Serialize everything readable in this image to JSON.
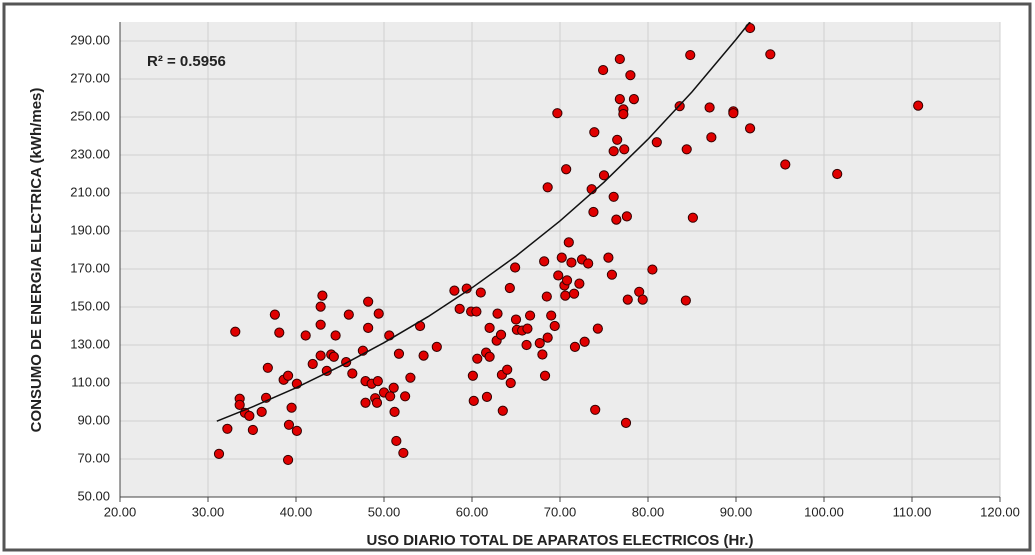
{
  "chart_data": {
    "type": "scatter",
    "annotation": "R² = 0.5956",
    "x_label": "USO DIARIO  TOTAL DE APARATOS  ELECTRICOS (Hr.)",
    "y_label": "CONSUMO DE ENERGIA ELECTRICA (kWh/mes)",
    "color": "#e00000",
    "grid": true,
    "xlim": [
      20,
      120
    ],
    "ylim": [
      50,
      300
    ],
    "xticks": [
      {
        "value": 20,
        "label": "20.00"
      },
      {
        "value": 30,
        "label": "30.00"
      },
      {
        "value": 40,
        "label": "40.00"
      },
      {
        "value": 50,
        "label": "50.00"
      },
      {
        "value": 60,
        "label": "60.00"
      },
      {
        "value": 70,
        "label": "70.00"
      },
      {
        "value": 80,
        "label": "80.00"
      },
      {
        "value": 90,
        "label": "90.00"
      },
      {
        "value": 100,
        "label": "100.00"
      },
      {
        "value": 110,
        "label": "110.00"
      },
      {
        "value": 120,
        "label": "120.00"
      }
    ],
    "yticks": [
      {
        "value": 50,
        "label": "50.00"
      },
      {
        "value": 70,
        "label": "70.00"
      },
      {
        "value": 90,
        "label": "90.00"
      },
      {
        "value": 110,
        "label": "110.00"
      },
      {
        "value": 130,
        "label": "130.00"
      },
      {
        "value": 150,
        "label": "150.00"
      },
      {
        "value": 170,
        "label": "170.00"
      },
      {
        "value": 190,
        "label": "190.00"
      },
      {
        "value": 210,
        "label": "210.00"
      },
      {
        "value": 230,
        "label": "230.00"
      },
      {
        "value": 250,
        "label": "250.00"
      },
      {
        "value": 270,
        "label": "270.00"
      },
      {
        "value": 290,
        "label": "290.00"
      }
    ],
    "x": [
      31.25,
      32.2,
      33.1,
      33.6,
      33.6,
      34.2,
      34.7,
      35.1,
      36.1,
      36.6,
      36.8,
      37.6,
      38.1,
      38.6,
      39.1,
      39.2,
      39.1,
      39.5,
      40.1,
      40.1,
      41.1,
      41.9,
      42.8,
      42.8,
      43,
      42.8,
      43.5,
      44,
      44.3,
      44.5,
      45.7,
      46,
      46.4,
      47.6,
      47.9,
      47.9,
      48.2,
      48.2,
      48.6,
      49,
      49.2,
      49.3,
      49.4,
      50,
      50.6,
      50.7,
      51.1,
      51.2,
      51.4,
      51.7,
      52.2,
      52.4,
      53,
      54.1,
      54.5,
      56,
      58,
      58.6,
      59.4,
      59.9,
      60.1,
      60.2,
      60.5,
      60.6,
      61,
      61.6,
      61.7,
      62,
      62,
      62.8,
      62.9,
      63.3,
      63.4,
      63.5,
      64,
      64.3,
      64.4,
      64.9,
      65,
      65.1,
      65.7,
      66.2,
      66.3,
      66.6,
      67.7,
      68,
      68.2,
      68.3,
      68.5,
      68.6,
      68.6,
      69,
      69.4,
      69.7,
      69.8,
      70.2,
      70.5,
      70.6,
      70.7,
      70.8,
      71,
      71.3,
      71.6,
      71.7,
      72.2,
      72.5,
      72.8,
      73.2,
      73.6,
      73.8,
      73.9,
      74,
      74.3,
      74.9,
      75,
      75.5,
      75.9,
      76.1,
      76.1,
      76.4,
      76.5,
      76.8,
      76.8,
      77.2,
      77.2,
      77.3,
      77.5,
      77.6,
      77.7,
      78,
      78.4,
      79,
      79.4,
      80.5,
      81,
      83.6,
      84.3,
      84.4,
      84.8,
      85.1,
      87,
      87.2,
      89.7,
      89.7,
      91.6,
      91.6,
      93.9,
      95.6,
      101.5,
      110.7
    ],
    "values": [
      72.7,
      85.9,
      137,
      101.7,
      98.5,
      94.3,
      92.7,
      85.3,
      94.8,
      102.2,
      118,
      146,
      136.5,
      111.7,
      113.8,
      88,
      69.5,
      97,
      109.6,
      84.8,
      135,
      120,
      140.7,
      150.2,
      156,
      124.4,
      116.4,
      125,
      123.8,
      135,
      121,
      146,
      115,
      127,
      111,
      99.6,
      152.8,
      139,
      109.6,
      102,
      99.6,
      111,
      146.5,
      105,
      135,
      103,
      107.5,
      94.8,
      79.5,
      125.4,
      73.2,
      103,
      112.8,
      140,
      124.4,
      129,
      158.6,
      149,
      159.7,
      147.6,
      113.8,
      100.6,
      147.6,
      122.8,
      157.6,
      126,
      102.7,
      123.8,
      139,
      132.3,
      146.5,
      135.4,
      114.3,
      95.4,
      117,
      160,
      110,
      170.8,
      143.4,
      138,
      137.6,
      130,
      138.6,
      145.5,
      131,
      125,
      174,
      113.8,
      155.5,
      213,
      133.9,
      145.5,
      140,
      252,
      166.6,
      176,
      161.3,
      156,
      222.5,
      164,
      184,
      173.4,
      157,
      129,
      162.3,
      175,
      131.7,
      172.9,
      212,
      200,
      242,
      95.9,
      138.6,
      274.7,
      219.3,
      176,
      167,
      208,
      232,
      196,
      238,
      280.5,
      259.4,
      254,
      251.5,
      233,
      89,
      197.7,
      153.9,
      272,
      259.4,
      158,
      153.9,
      169.7,
      236.7,
      255.7,
      153.4,
      233,
      282.6,
      197,
      255,
      239.3,
      253,
      252,
      296.8,
      244,
      283,
      225,
      220,
      256
    ],
    "trendline": {
      "x": [
        31,
        35,
        40,
        45,
        50,
        55,
        60,
        65,
        70,
        75,
        80,
        85,
        90,
        92
      ],
      "y": [
        89.9,
        97.3,
        107.5,
        118.8,
        131.2,
        144.9,
        160.1,
        176.8,
        195.3,
        215.7,
        238.3,
        263.2,
        290.8,
        302.4
      ]
    }
  }
}
